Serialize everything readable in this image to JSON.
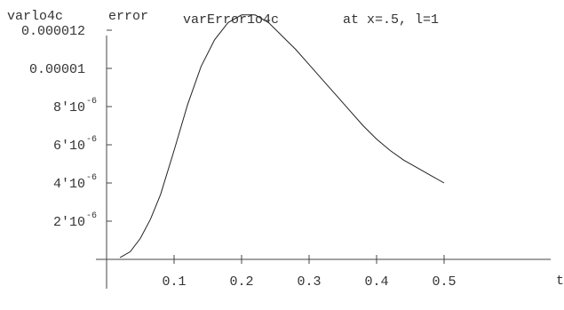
{
  "chart_data": {
    "type": "line",
    "title_parts": [
      "varlo4c",
      "error",
      "varError1o4c",
      "at x=.5, l=1"
    ],
    "xlabel": "t",
    "ylabel": "",
    "xlim": [
      0.0,
      0.52
    ],
    "ylim": [
      0.0,
      1.36e-05
    ],
    "grid": false,
    "x_ticks": [
      {
        "value": 0.1,
        "label": "0.1"
      },
      {
        "value": 0.2,
        "label": "0.2"
      },
      {
        "value": 0.3,
        "label": "0.3"
      },
      {
        "value": 0.4,
        "label": "0.4"
      },
      {
        "value": 0.5,
        "label": "0.5"
      }
    ],
    "y_ticks": [
      {
        "value": 2e-06,
        "mant": "2'10",
        "exp": "-6"
      },
      {
        "value": 4e-06,
        "mant": "4'10",
        "exp": "-6"
      },
      {
        "value": 6e-06,
        "mant": "6'10",
        "exp": "-6"
      },
      {
        "value": 8e-06,
        "mant": "8'10",
        "exp": "-6"
      },
      {
        "value": 1e-05,
        "mant": "0.00001",
        "exp": ""
      },
      {
        "value": 1.2e-05,
        "mant": "0.000012",
        "exp": ""
      }
    ],
    "series": [
      {
        "x": [
          0.02,
          0.035,
          0.05,
          0.065,
          0.08,
          0.1,
          0.12,
          0.14,
          0.16,
          0.18,
          0.2,
          0.22,
          0.24,
          0.26,
          0.28,
          0.3,
          0.32,
          0.34,
          0.36,
          0.38,
          0.4,
          0.42,
          0.44,
          0.46,
          0.48,
          0.5
        ],
        "y": [
          1e-07,
          4e-07,
          1.1e-06,
          2.1e-06,
          3.4e-06,
          5.7e-06,
          8.1e-06,
          1.01e-05,
          1.15e-05,
          1.24e-05,
          1.28e-05,
          1.28e-05,
          1.24e-05,
          1.17e-05,
          1.1e-05,
          1.02e-05,
          9.4e-06,
          8.6e-06,
          7.8e-06,
          7e-06,
          6.3e-06,
          5.7e-06,
          5.2e-06,
          4.8e-06,
          4.4e-06,
          4e-06
        ]
      }
    ]
  }
}
